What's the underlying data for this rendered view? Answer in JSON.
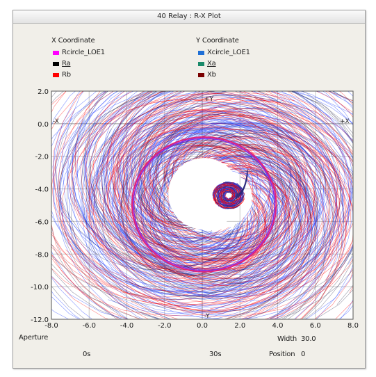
{
  "window": {
    "title": "40 Relay : R-X Plot"
  },
  "legend": {
    "x_header": "X Coordinate",
    "y_header": "Y Coordinate",
    "x_items": [
      {
        "label": "Rcircle_LOE1",
        "color": "#ff00ff",
        "underline": false
      },
      {
        "label": "Ra",
        "color": "#000000",
        "underline": true
      },
      {
        "label": "Rb",
        "color": "#ff0000",
        "underline": false
      }
    ],
    "y_items": [
      {
        "label": "Xcircle_LOE1",
        "color": "#1f6fd6",
        "underline": false
      },
      {
        "label": "Xa",
        "color": "#1a8a6a",
        "underline": true
      },
      {
        "label": "Xb",
        "color": "#7a0000",
        "underline": false
      }
    ]
  },
  "chart_data": {
    "type": "line",
    "title": "",
    "xlim": [
      -8.0,
      8.0
    ],
    "ylim": [
      -12.0,
      2.0
    ],
    "xticks": [
      "-8.0",
      "-6.0",
      "-4.0",
      "-2.0",
      "0.0",
      "2.0",
      "4.0",
      "6.0",
      "8.0"
    ],
    "yticks": [
      "2.0",
      "0.0",
      "-2.0",
      "-4.0",
      "-6.0",
      "-8.0",
      "-10.0",
      "-12.0"
    ],
    "axis_markers": {
      "pos_y": "+Y",
      "neg_y": "-Y",
      "neg_x": "-X",
      "pos_x": "+X"
    },
    "grid": true,
    "impedance_circle": {
      "center_r": 0.1,
      "center_x": -4.95,
      "radius": 3.75
    },
    "trajectory": {
      "description_free": true,
      "spiral_center_r": 1.4,
      "spiral_center_x": -4.4
    },
    "colors": {
      "circle": "#e0207a",
      "circle_inner": "#8a2be2",
      "ra": "#000000",
      "rb": "#ff0000",
      "xb_blue": "#2040ff"
    }
  },
  "aperture": {
    "label": "Aperture",
    "start": "0s",
    "end": "30s",
    "width_label": "Width",
    "width_value": "30.0",
    "position_label": "Position",
    "position_value": "0"
  }
}
